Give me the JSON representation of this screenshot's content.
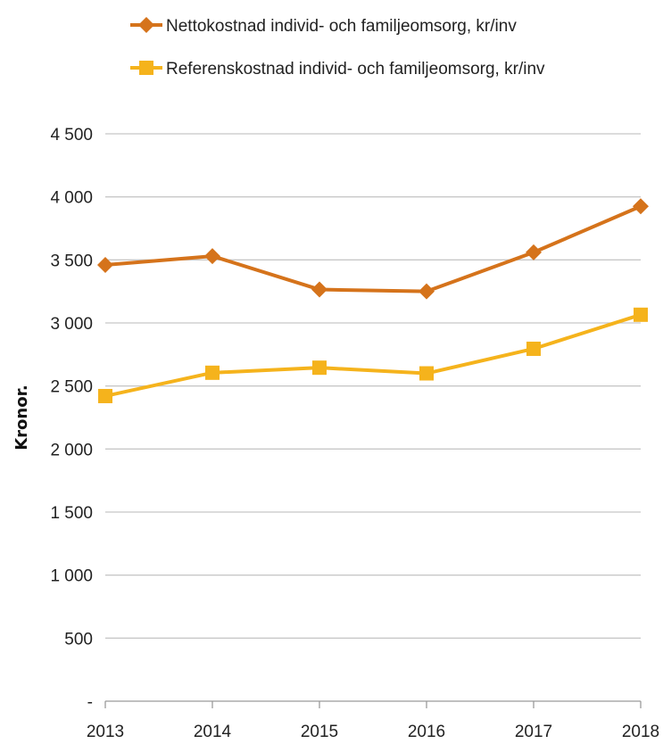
{
  "chart_data": {
    "type": "line",
    "categories": [
      "2013",
      "2014",
      "2015",
      "2016",
      "2017",
      "2018"
    ],
    "series": [
      {
        "name": "Nettokostnad individ- och familjeomsorg, kr/inv",
        "values": [
          3460,
          3530,
          3265,
          3250,
          3560,
          3925
        ],
        "color": "#D5731B",
        "marker": "diamond"
      },
      {
        "name": "Referenskostnad individ- och familjeomsorg, kr/inv",
        "values": [
          2420,
          2605,
          2645,
          2600,
          2795,
          3065
        ],
        "color": "#F5B31C",
        "marker": "square"
      }
    ],
    "title": "",
    "xlabel": "",
    "ylabel": "Kronor.",
    "ylim": [
      0,
      4500
    ],
    "yticks": [
      0,
      500,
      1000,
      1500,
      2000,
      2500,
      3000,
      3500,
      4000,
      4500
    ],
    "ytick_labels": [
      "-",
      "500",
      "1 000",
      "1 500",
      "2 000",
      "2 500",
      "3 000",
      "3 500",
      "4 000",
      "4 500"
    ],
    "grid": true,
    "legend_position": "top"
  }
}
